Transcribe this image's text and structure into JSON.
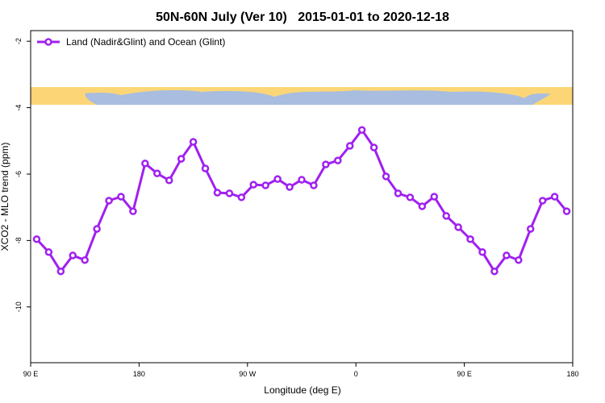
{
  "chart_data": {
    "type": "line",
    "title": "50N-60N July (Ver 10)   2015-01-01 to 2020-12-18",
    "x_label": "Longitude (deg E)",
    "y_label": "XCO2 - MLO trend (ppm)",
    "xlim": [
      90,
      540
    ],
    "xticks": [
      {
        "value": 90,
        "label": "90 E"
      },
      {
        "value": 180,
        "label": "180"
      },
      {
        "value": 270,
        "label": "90 W"
      },
      {
        "value": 360,
        "label": "0"
      },
      {
        "value": 450,
        "label": "90 E"
      },
      {
        "value": 540,
        "label": "180"
      }
    ],
    "ylim": [
      -11.68,
      -1.68
    ],
    "yticks": [
      -2,
      -4,
      -6,
      -8,
      -10
    ],
    "legend_position": "top-left",
    "x": [
      95,
      105,
      115,
      125,
      135,
      145,
      155,
      165,
      175,
      185,
      195,
      205,
      215,
      225,
      235,
      245,
      255,
      265,
      275,
      285,
      295,
      305,
      315,
      325,
      335,
      345,
      355,
      365,
      375,
      385,
      395,
      405,
      415,
      425,
      435,
      445,
      455,
      465,
      475,
      485,
      495,
      505,
      515,
      525,
      535
    ],
    "series": [
      {
        "name": "Land (Nadir&Glint) and Ocean (Glint)",
        "color": "#a020f0",
        "values": [
          -7.96,
          -8.35,
          -8.93,
          -8.45,
          -8.59,
          -7.65,
          -6.8,
          -6.68,
          -7.12,
          -5.68,
          -5.98,
          -6.19,
          -5.54,
          -5.03,
          -5.83,
          -6.56,
          -6.58,
          -6.7,
          -6.32,
          -6.34,
          -6.15,
          -6.39,
          -6.17,
          -6.34,
          -5.71,
          -5.59,
          -5.15,
          -4.67,
          -5.2,
          -6.07,
          -6.58,
          -6.7,
          -6.97,
          -6.68,
          -7.26,
          -7.6,
          -7.96,
          -8.35,
          -8.93,
          -8.45,
          -8.59,
          -7.65,
          -6.8,
          -6.68,
          -7.12
        ]
      }
    ]
  }
}
